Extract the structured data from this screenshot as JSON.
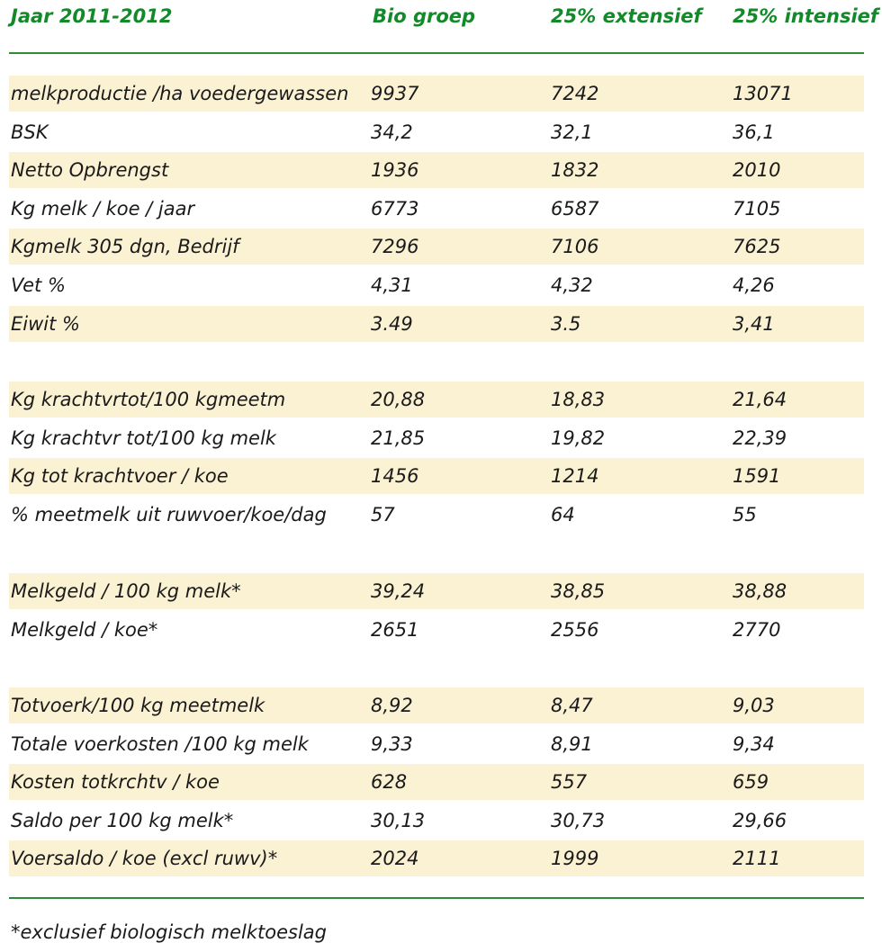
{
  "header": {
    "year": "Jaar 2011-2012",
    "col1": "Bio groep",
    "col2": "25% extensief",
    "col3": "25% intensief"
  },
  "groups": [
    {
      "rows": [
        {
          "label": "melkproductie /ha voedergewassen",
          "bio": "9937",
          "ext": "7242",
          "int": "13071",
          "shaded": true
        },
        {
          "label": "BSK",
          "bio": "34,2",
          "ext": "32,1",
          "int": "36,1",
          "shaded": false
        },
        {
          "label": "Netto Opbrengst",
          "bio": "1936",
          "ext": "1832",
          "int": "2010",
          "shaded": true
        },
        {
          "label": "Kg melk / koe / jaar",
          "bio": "6773",
          "ext": "6587",
          "int": "7105",
          "shaded": false
        },
        {
          "label": "Kgmelk 305 dgn, Bedrijf",
          "bio": "7296",
          "ext": "7106",
          "int": "7625",
          "shaded": true
        },
        {
          "label": "Vet %",
          "bio": "4,31",
          "ext": "4,32",
          "int": "4,26",
          "shaded": false
        },
        {
          "label": "Eiwit %",
          "bio": "3.49",
          "ext": "3.5",
          "int": "3,41",
          "shaded": true
        }
      ]
    },
    {
      "rows": [
        {
          "label": "Kg krachtvrtot/100 kgmeetm",
          "bio": "20,88",
          "ext": "18,83",
          "int": "21,64",
          "shaded": true
        },
        {
          "label": "Kg krachtvr tot/100 kg melk",
          "bio": "21,85",
          "ext": "19,82",
          "int": "22,39",
          "shaded": false
        },
        {
          "label": "Kg tot krachtvoer / koe",
          "bio": "1456",
          "ext": "1214",
          "int": "1591",
          "shaded": true
        },
        {
          "label": "% meetmelk uit ruwvoer/koe/dag",
          "bio": "57",
          "ext": "64",
          "int": "55",
          "shaded": false
        }
      ]
    },
    {
      "rows": [
        {
          "label": "Melkgeld / 100 kg melk*",
          "bio": "39,24",
          "ext": "38,85",
          "int": "38,88",
          "shaded": true
        },
        {
          "label": "Melkgeld / koe*",
          "bio": "2651",
          "ext": "2556",
          "int": "2770",
          "shaded": false
        }
      ]
    },
    {
      "rows": [
        {
          "label": "Totvoerk/100 kg meetmelk",
          "bio": "8,92",
          "ext": "8,47",
          "int": "9,03",
          "shaded": true
        },
        {
          "label": "Totale voerkosten /100 kg melk",
          "bio": "9,33",
          "ext": "8,91",
          "int": "9,34",
          "shaded": false
        },
        {
          "label": "Kosten totkrchtv / koe",
          "bio": "628",
          "ext": "557",
          "int": "659",
          "shaded": true
        },
        {
          "label": "Saldo per 100 kg melk*",
          "bio": "30,13",
          "ext": "30,73",
          "int": "29,66",
          "shaded": false
        },
        {
          "label": "Voersaldo / koe (excl ruwv)*",
          "bio": "2024",
          "ext": "1999",
          "int": "2111",
          "shaded": true
        }
      ]
    }
  ],
  "footnote": "*exclusief biologisch melktoeslag",
  "colors": {
    "header_text": "#138a2a",
    "rule": "#2e8b3a",
    "shade": "#fbf1d3"
  }
}
